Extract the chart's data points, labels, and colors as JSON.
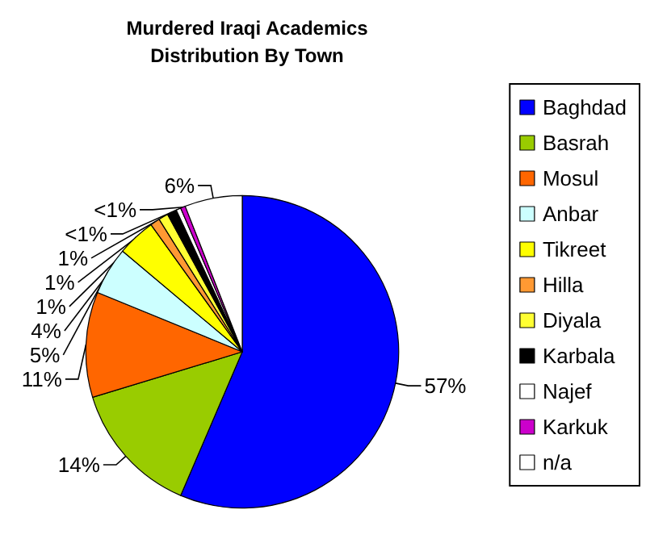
{
  "chart_data": {
    "type": "pie",
    "title": "Murdered Iraqi Academics\nDistribution By Town",
    "categories": [
      "Baghdad",
      "Basrah",
      "Mosul",
      "Anbar",
      "Tikreet",
      "Hilla",
      "Diyala",
      "Karbala",
      "Najef",
      "Karkuk",
      "n/a"
    ],
    "values": [
      57,
      14,
      11,
      5,
      4,
      1,
      1,
      1,
      0.5,
      0.5,
      6
    ],
    "value_labels": [
      "57%",
      "14%",
      "11%",
      "5%",
      "4%",
      "1%",
      "1%",
      "1%",
      "<1%",
      "<1%",
      "6%"
    ],
    "colors": [
      "#0000ff",
      "#99cc00",
      "#ff6600",
      "#ccffff",
      "#ffff00",
      "#ff9933",
      "#ffff33",
      "#000000",
      "#ffffff",
      "#cc00cc",
      "#ffffff"
    ],
    "legend": "right"
  }
}
